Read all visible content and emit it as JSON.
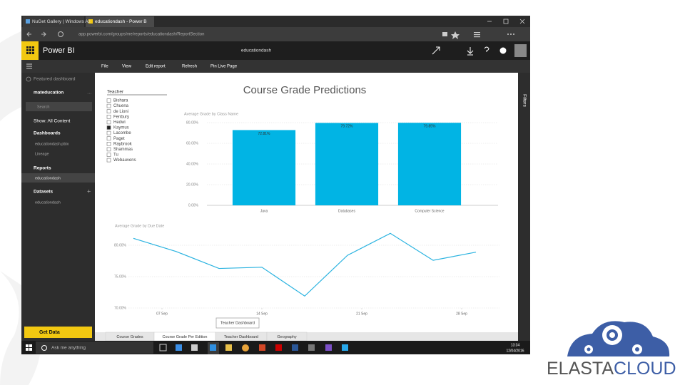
{
  "browser": {
    "tabs": [
      "NuGet Gallery | Windows Az",
      "educationdash - Power B"
    ],
    "url": "app.powerbi.com/groups/me/reports/educationdash/ReportSection"
  },
  "app": {
    "name": "Power BI",
    "report_name": "educationdash"
  },
  "toolbar": [
    "File",
    "View",
    "Edit report",
    "Refresh",
    "Pin Live Page"
  ],
  "nav": {
    "featured": "Featured dashboard",
    "workspace": "mateducation",
    "search": "Search",
    "show": "Show: All Content",
    "dashboards": {
      "title": "Dashboards",
      "items": [
        "educationdash.pbix",
        "Lineage"
      ]
    },
    "reports": {
      "title": "Reports",
      "items": [
        "educationdash"
      ]
    },
    "datasets": {
      "title": "Datasets",
      "items": [
        "educationdash"
      ]
    },
    "get_data": "Get Data"
  },
  "report": {
    "title": "Course Grade Predictions",
    "slicer": {
      "title": "Teacher",
      "items": [
        "Bishara",
        "Chuena",
        "de Lioni",
        "Fenbury",
        "Hedwi",
        "Kaymus",
        "Lacombe",
        "Paget",
        "Raybrook",
        "Shammas",
        "Tu",
        "Webauvens"
      ],
      "selected": "Kaymus"
    },
    "button": "Teacher Dashboard",
    "pages": [
      "Course Grades",
      "Course Grade Per Edition",
      "Teacher Dashboard",
      "Geography"
    ],
    "active_page": "Course Grade Per Edition"
  },
  "filters_label": "Filters",
  "taskbar": {
    "search": "Ask me anything",
    "time": "13:34",
    "date": "12/04/2016"
  },
  "logo": {
    "left": "ELASTA",
    "right": "CLOUD"
  },
  "chart_data": [
    {
      "type": "bar",
      "title": "Average Grade by Class Name",
      "categories": [
        "Java",
        "Databases",
        "Computer Science"
      ],
      "values": [
        72.81,
        79.72,
        79.85
      ],
      "value_labels": [
        "72.81%",
        "79.72%",
        "79.85%"
      ],
      "color": "#01b4e4",
      "ylim": [
        0,
        80
      ],
      "yticks": [
        {
          "value": 0,
          "label": "0.00%"
        },
        {
          "value": 20,
          "label": "20.00%"
        },
        {
          "value": 40,
          "label": "40.00%"
        },
        {
          "value": 60,
          "label": "60.00%"
        },
        {
          "value": 80,
          "label": "80.00%"
        }
      ],
      "grid": true
    },
    {
      "type": "line",
      "title": "Average Grade by Due Date",
      "x": [
        5,
        8,
        11,
        14,
        17,
        20,
        23,
        26,
        29
      ],
      "series": [
        {
          "name": "Average Grade",
          "color": "#2bb3e0",
          "values": [
            81.1,
            79.0,
            76.3,
            76.5,
            71.9,
            78.4,
            81.9,
            77.6,
            78.9
          ]
        }
      ],
      "xlim": [
        4,
        30
      ],
      "xticks": [
        {
          "value": 7,
          "label": "07 Sep"
        },
        {
          "value": 14,
          "label": "14 Sep"
        },
        {
          "value": 21,
          "label": "21 Sep"
        },
        {
          "value": 28,
          "label": "28 Sep"
        }
      ],
      "ylim": [
        70,
        83
      ],
      "yticks": [
        {
          "value": 70,
          "label": "70.00%"
        },
        {
          "value": 75,
          "label": "75.00%"
        },
        {
          "value": 80,
          "label": "80.00%"
        }
      ],
      "grid": true
    }
  ]
}
